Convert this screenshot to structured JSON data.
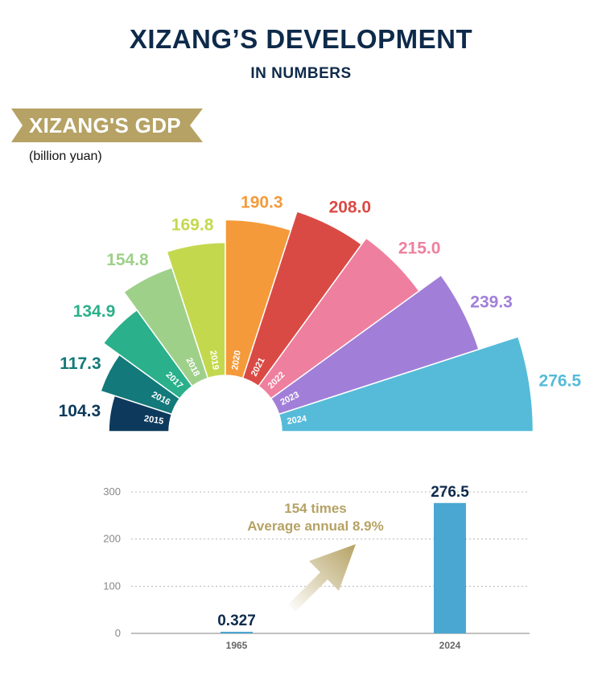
{
  "header": {
    "title": "XIZANG’S DEVELOPMENT",
    "subtitle": "IN NUMBERS"
  },
  "section": {
    "banner": "XIZANG'S GDP",
    "unit": "(billion yuan)"
  },
  "colors": {
    "navy": "#0e2a4a",
    "gold": "#b5a264",
    "bar": "#4aa7d2"
  },
  "chart_data": [
    {
      "type": "polar-bar",
      "categories": [
        "2015",
        "2016",
        "2017",
        "2018",
        "2019",
        "2020",
        "2021",
        "2022",
        "2023",
        "2024"
      ],
      "values": [
        104.3,
        117.3,
        134.9,
        154.8,
        169.8,
        190.3,
        208.0,
        215.0,
        239.3,
        276.5
      ],
      "value_labels": [
        "104.3",
        "117.3",
        "134.9",
        "154.8",
        "169.8",
        "190.3",
        "208.0",
        "215.0",
        "239.3",
        "276.5"
      ],
      "colors": [
        "#0d3a5c",
        "#13797a",
        "#2ab08a",
        "#9fd08a",
        "#c4d84e",
        "#f59a3a",
        "#da4a45",
        "#ef7f9e",
        "#a17fd8",
        "#55bbd9"
      ]
    },
    {
      "type": "bar",
      "categories": [
        "1965",
        "2024"
      ],
      "values": [
        0.327,
        276.5
      ],
      "value_labels": [
        "0.327",
        "276.5"
      ],
      "yticks": [
        "0",
        "100",
        "200",
        "300"
      ],
      "ylim": [
        0,
        300
      ],
      "annotation": [
        "154 times",
        "Average annual 8.9%"
      ],
      "grid": true
    }
  ]
}
